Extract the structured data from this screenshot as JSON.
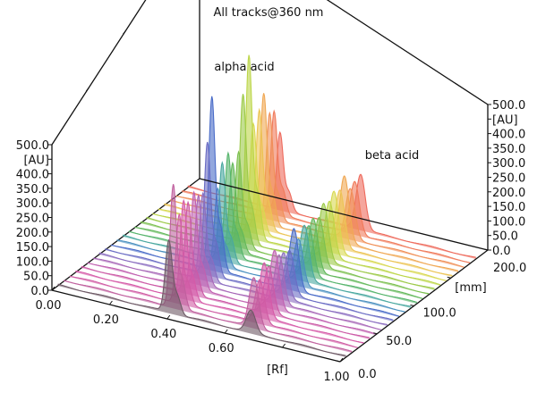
{
  "chart_data": {
    "type": "3d-waterfall",
    "title": "All tracks@360 nm",
    "annotations": [
      "alpha acid",
      "beta acid"
    ],
    "x_axis": {
      "label": "[Rf]",
      "range": [
        0,
        1
      ],
      "ticks": [
        "0.00",
        "0.20",
        "0.40",
        "0.60",
        "1.00"
      ],
      "tick_values": [
        0,
        0.2,
        0.4,
        0.6,
        1.0
      ]
    },
    "y_axis": {
      "label": "[mm]",
      "range": [
        0,
        200
      ],
      "ticks": [
        "0.0",
        "50.0",
        "100.0",
        "200.0"
      ],
      "tick_values": [
        0,
        50,
        100,
        200
      ]
    },
    "z_axis": {
      "label": "[AU]",
      "range": [
        0,
        500
      ],
      "ticks": [
        "0.0",
        "50.0",
        "100.0",
        "150.0",
        "200.0",
        "250.0",
        "300.0",
        "350.0",
        "400.0",
        "500.0"
      ],
      "tick_values": [
        0,
        50,
        100,
        150,
        200,
        250,
        300,
        350,
        400,
        500
      ]
    },
    "tracks": [
      {
        "mm": 8,
        "color": "#6e5a66",
        "peaks": [
          {
            "rf": 0.385,
            "au": 245,
            "width_rf": 0.012
          },
          {
            "rf": 0.67,
            "au": 75,
            "width_rf": 0.016
          }
        ]
      },
      {
        "mm": 16,
        "color": "#c0609e",
        "peaks": [
          {
            "rf": 0.38,
            "au": 420,
            "width_rf": 0.011
          },
          {
            "rf": 0.66,
            "au": 170,
            "width_rf": 0.016
          }
        ]
      },
      {
        "mm": 24,
        "color": "#d05ca4",
        "peaks": [
          {
            "rf": 0.38,
            "au": 300,
            "width_rf": 0.011
          },
          {
            "rf": 0.66,
            "au": 150,
            "width_rf": 0.016
          }
        ]
      },
      {
        "mm": 32,
        "color": "#d65aa8",
        "peaks": [
          {
            "rf": 0.375,
            "au": 330,
            "width_rf": 0.011
          },
          {
            "rf": 0.655,
            "au": 190,
            "width_rf": 0.016
          }
        ]
      },
      {
        "mm": 40,
        "color": "#cc5aa6",
        "peaks": [
          {
            "rf": 0.37,
            "au": 310,
            "width_rf": 0.011
          },
          {
            "rf": 0.65,
            "au": 160,
            "width_rf": 0.016
          }
        ]
      },
      {
        "mm": 48,
        "color": "#c060b0",
        "peaks": [
          {
            "rf": 0.37,
            "au": 330,
            "width_rf": 0.011
          },
          {
            "rf": 0.65,
            "au": 200,
            "width_rf": 0.016
          }
        ]
      },
      {
        "mm": 56,
        "color": "#a868b8",
        "peaks": [
          {
            "rf": 0.365,
            "au": 300,
            "width_rf": 0.011
          },
          {
            "rf": 0.645,
            "au": 170,
            "width_rf": 0.016
          }
        ]
      },
      {
        "mm": 64,
        "color": "#8a6cc0",
        "peaks": [
          {
            "rf": 0.36,
            "au": 290,
            "width_rf": 0.011
          },
          {
            "rf": 0.64,
            "au": 160,
            "width_rf": 0.016
          }
        ]
      },
      {
        "mm": 72,
        "color": "#6a6cc4",
        "peaks": [
          {
            "rf": 0.355,
            "au": 450,
            "width_rf": 0.011
          },
          {
            "rf": 0.64,
            "au": 150,
            "width_rf": 0.016
          }
        ]
      },
      {
        "mm": 80,
        "color": "#4a6cc8",
        "peaks": [
          {
            "rf": 0.35,
            "au": 590,
            "width_rf": 0.011
          },
          {
            "rf": 0.635,
            "au": 210,
            "width_rf": 0.016
          }
        ]
      },
      {
        "mm": 88,
        "color": "#4a90c0",
        "peaks": [
          {
            "rf": 0.35,
            "au": 260,
            "width_rf": 0.011
          },
          {
            "rf": 0.63,
            "au": 160,
            "width_rf": 0.016
          }
        ]
      },
      {
        "mm": 96,
        "color": "#4aa8a0",
        "peaks": [
          {
            "rf": 0.345,
            "au": 330,
            "width_rf": 0.011
          },
          {
            "rf": 0.63,
            "au": 190,
            "width_rf": 0.016
          }
        ]
      },
      {
        "mm": 104,
        "color": "#56b46c",
        "peaks": [
          {
            "rf": 0.345,
            "au": 350,
            "width_rf": 0.011
          },
          {
            "rf": 0.625,
            "au": 170,
            "width_rf": 0.016
          }
        ]
      },
      {
        "mm": 112,
        "color": "#62b85a",
        "peaks": [
          {
            "rf": 0.34,
            "au": 300,
            "width_rf": 0.011
          },
          {
            "rf": 0.62,
            "au": 180,
            "width_rf": 0.016
          }
        ]
      },
      {
        "mm": 120,
        "color": "#7cc050",
        "peaks": [
          {
            "rf": 0.34,
            "au": 320,
            "width_rf": 0.011
          },
          {
            "rf": 0.62,
            "au": 170,
            "width_rf": 0.016
          }
        ]
      },
      {
        "mm": 128,
        "color": "#9cca48",
        "peaks": [
          {
            "rf": 0.335,
            "au": 500,
            "width_rf": 0.011
          },
          {
            "rf": 0.615,
            "au": 200,
            "width_rf": 0.016
          }
        ]
      },
      {
        "mm": 136,
        "color": "#bcd648",
        "peaks": [
          {
            "rf": 0.335,
            "au": 620,
            "width_rf": 0.011
          },
          {
            "rf": 0.615,
            "au": 190,
            "width_rf": 0.016
          }
        ]
      },
      {
        "mm": 144,
        "color": "#d8d850",
        "peaks": [
          {
            "rf": 0.33,
            "au": 370,
            "width_rf": 0.011
          },
          {
            "rf": 0.61,
            "au": 210,
            "width_rf": 0.016
          }
        ]
      },
      {
        "mm": 152,
        "color": "#ecc454",
        "peaks": [
          {
            "rf": 0.33,
            "au": 400,
            "width_rf": 0.011
          },
          {
            "rf": 0.61,
            "au": 200,
            "width_rf": 0.016
          }
        ]
      },
      {
        "mm": 160,
        "color": "#f0a854",
        "peaks": [
          {
            "rf": 0.325,
            "au": 440,
            "width_rf": 0.011
          },
          {
            "rf": 0.605,
            "au": 230,
            "width_rf": 0.016
          }
        ]
      },
      {
        "mm": 168,
        "color": "#f09058",
        "peaks": [
          {
            "rf": 0.325,
            "au": 360,
            "width_rf": 0.011
          },
          {
            "rf": 0.605,
            "au": 170,
            "width_rf": 0.016
          }
        ]
      },
      {
        "mm": 176,
        "color": "#f07a5a",
        "peaks": [
          {
            "rf": 0.32,
            "au": 350,
            "width_rf": 0.011
          },
          {
            "rf": 0.6,
            "au": 180,
            "width_rf": 0.016
          }
        ]
      },
      {
        "mm": 184,
        "color": "#ee6a5c",
        "peaks": [
          {
            "rf": 0.32,
            "au": 260,
            "width_rf": 0.011
          },
          {
            "rf": 0.6,
            "au": 190,
            "width_rf": 0.016
          }
        ]
      }
    ]
  }
}
